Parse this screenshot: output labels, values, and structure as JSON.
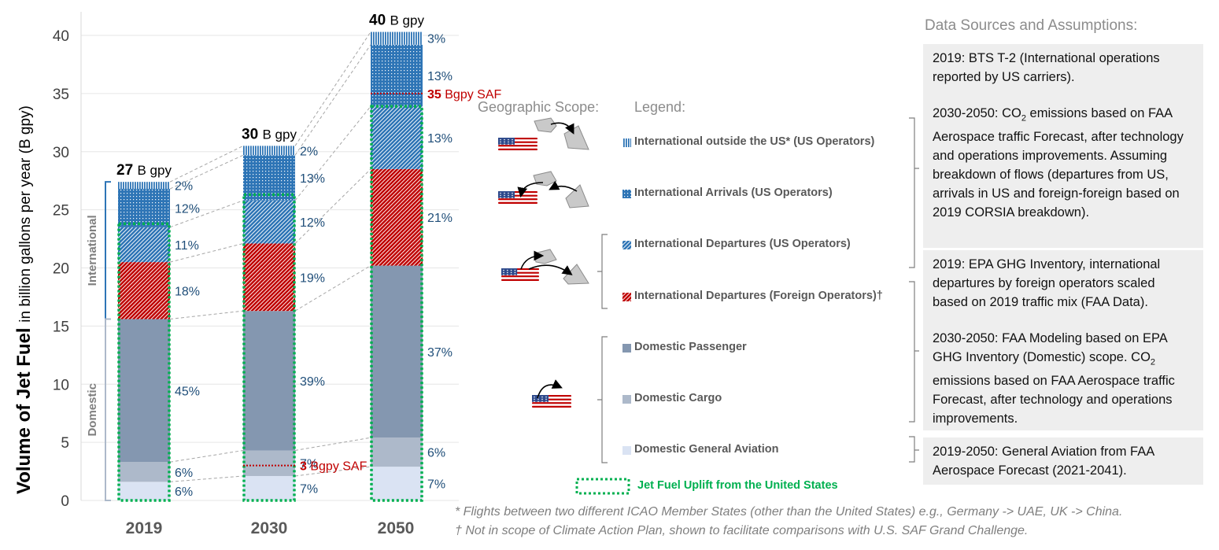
{
  "chart_data": {
    "type": "bar",
    "stacked": true,
    "categories": [
      "2019",
      "2030",
      "2050"
    ],
    "ylabel_bold": "Volume of Jet Fuel",
    "ylabel_rest": "in billion gallons per year (B gpy)",
    "ylim": [
      0,
      40
    ],
    "yticks": [
      "0",
      "5",
      "10",
      "15",
      "20",
      "25",
      "30",
      "35",
      "40"
    ],
    "grid": true,
    "totals": [
      {
        "value": "27",
        "unit": "B gpy"
      },
      {
        "value": "30",
        "unit": "B gpy"
      },
      {
        "value": "40",
        "unit": "B gpy"
      }
    ],
    "series": [
      {
        "name": "Domestic General Aviation",
        "color": "#dae3f3",
        "values": [
          1.6,
          2.1,
          2.9
        ],
        "labels": [
          "6%",
          "7%",
          "7%"
        ]
      },
      {
        "name": "Domestic Cargo",
        "color": "#adb9ca",
        "values": [
          1.7,
          2.2,
          2.5
        ],
        "labels": [
          "6%",
          "7%",
          "6%"
        ]
      },
      {
        "name": "Domestic Passenger",
        "color": "#8497b0",
        "values": [
          12.3,
          12.0,
          14.8
        ],
        "labels": [
          "45%",
          "39%",
          "37%"
        ]
      },
      {
        "name": "International Departures (Foreign Operators)†",
        "color": "#c00000",
        "values": [
          4.9,
          5.8,
          8.3
        ],
        "labels": [
          "18%",
          "19%",
          "21%"
        ]
      },
      {
        "name": "International Departures (US Operators)",
        "color": "#2e75b6",
        "values": [
          3.0,
          3.7,
          5.4
        ],
        "labels": [
          "11%",
          "12%",
          "13%"
        ]
      },
      {
        "name": "International Arrivals (US Operators)",
        "color": "#2e75b6",
        "values": [
          3.3,
          3.9,
          5.3
        ],
        "labels": [
          "12%",
          "13%",
          "13%"
        ]
      },
      {
        "name": "International outside the US* (US Operators)",
        "color": "#2e75b6",
        "values": [
          0.6,
          0.8,
          1.1
        ],
        "labels": [
          "2%",
          "2%",
          "3%"
        ]
      }
    ],
    "uplift_tops": [
      23.8,
      26.3,
      33.9
    ],
    "saf_markers": [
      {
        "category": "2030",
        "value": 3.0,
        "number": "3",
        "text": "Bgpy SAF"
      },
      {
        "category": "2050",
        "value": 35.0,
        "number": "35",
        "text": "Bgpy SAF"
      }
    ],
    "group_labels": [
      {
        "text": "International",
        "from": 15.6,
        "to": 27.4
      },
      {
        "text": "Domestic",
        "from": 0,
        "to": 15.6
      }
    ]
  },
  "scope_title": "Geographic Scope:",
  "legend_title": "Legend:",
  "legend_items": [
    {
      "label": "International outside the US* (US Operators)",
      "pattern": "vert",
      "color": "#2e75b6"
    },
    {
      "label": "International Arrivals (US Operators)",
      "pattern": "dots",
      "color": "#2e75b6"
    },
    {
      "label": "International Departures (US Operators)",
      "pattern": "diag",
      "color": "#2e75b6"
    },
    {
      "label": "International Departures (Foreign Operators)†",
      "pattern": "diag",
      "color": "#c00000"
    },
    {
      "label": "Domestic Passenger",
      "pattern": "solid",
      "color": "#8497b0"
    },
    {
      "label": "Domestic Cargo",
      "pattern": "solid",
      "color": "#adb9ca"
    },
    {
      "label": "Domestic General Aviation",
      "pattern": "solid",
      "color": "#dae3f3"
    }
  ],
  "uplift_label": "Jet Fuel Uplift from the United States",
  "sources": {
    "title": "Data Sources and Assumptions:",
    "box1_p1": "2019: BTS T-2 (International operations reported by US carriers).",
    "box1_p2_a": "2030-2050: CO",
    "box1_p2_sub": "2",
    "box1_p2_b": " emissions based on FAA Aerospace traffic Forecast, after technology and operations improvements. Assuming breakdown of flows (departures from US, arrivals in US and foreign-foreign based on 2019 CORSIA breakdown).",
    "box2_p1": "2019: EPA GHG Inventory, international departures by foreign operators scaled based on 2019 traffic mix (FAA Data).",
    "box2_p2_a": "2030-2050: FAA Modeling based on EPA GHG Inventory (Domestic) scope. CO",
    "box2_p2_sub": "2",
    "box2_p2_b": " emissions based on FAA Aerospace traffic Forecast, after technology and operations improvements.",
    "box3": "2019-2050: General Aviation from FAA Aerospace Forecast (2021-2041)."
  },
  "footnotes": [
    "* Flights between two different ICAO Member States (other than the United States) e.g., Germany -> UAE, UK -> China.",
    "† Not in scope of Climate Action Plan, shown to facilitate comparisons with U.S. SAF Grand Challenge."
  ],
  "colors": {
    "uplift": "#00b050",
    "saf": "#c00000",
    "label": "#1f4e79",
    "axis": "#595959"
  }
}
